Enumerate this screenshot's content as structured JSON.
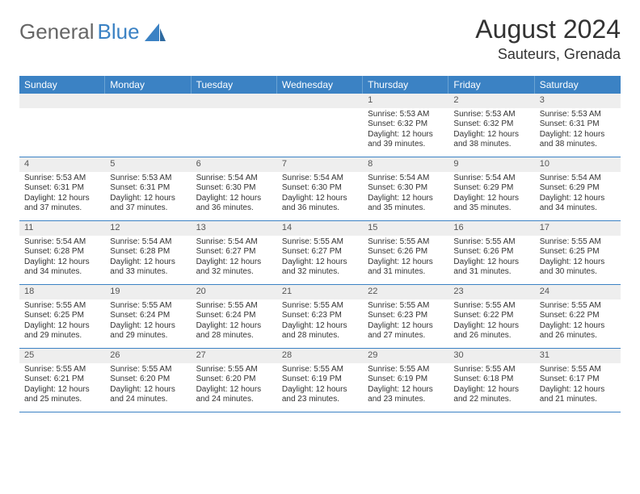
{
  "logo": {
    "text1": "General",
    "text2": "Blue"
  },
  "title": "August 2024",
  "location": "Sauteurs, Grenada",
  "colors": {
    "header_bg": "#3b82c4",
    "header_text": "#ffffff",
    "daynum_bg": "#eeeeee",
    "border": "#3b82c4",
    "logo_gray": "#666666",
    "logo_blue": "#3b82c4"
  },
  "weekdays": [
    "Sunday",
    "Monday",
    "Tuesday",
    "Wednesday",
    "Thursday",
    "Friday",
    "Saturday"
  ],
  "weeks": [
    [
      null,
      null,
      null,
      null,
      {
        "n": "1",
        "sr": "5:53 AM",
        "ss": "6:32 PM",
        "dl": "12 hours and 39 minutes."
      },
      {
        "n": "2",
        "sr": "5:53 AM",
        "ss": "6:32 PM",
        "dl": "12 hours and 38 minutes."
      },
      {
        "n": "3",
        "sr": "5:53 AM",
        "ss": "6:31 PM",
        "dl": "12 hours and 38 minutes."
      }
    ],
    [
      {
        "n": "4",
        "sr": "5:53 AM",
        "ss": "6:31 PM",
        "dl": "12 hours and 37 minutes."
      },
      {
        "n": "5",
        "sr": "5:53 AM",
        "ss": "6:31 PM",
        "dl": "12 hours and 37 minutes."
      },
      {
        "n": "6",
        "sr": "5:54 AM",
        "ss": "6:30 PM",
        "dl": "12 hours and 36 minutes."
      },
      {
        "n": "7",
        "sr": "5:54 AM",
        "ss": "6:30 PM",
        "dl": "12 hours and 36 minutes."
      },
      {
        "n": "8",
        "sr": "5:54 AM",
        "ss": "6:30 PM",
        "dl": "12 hours and 35 minutes."
      },
      {
        "n": "9",
        "sr": "5:54 AM",
        "ss": "6:29 PM",
        "dl": "12 hours and 35 minutes."
      },
      {
        "n": "10",
        "sr": "5:54 AM",
        "ss": "6:29 PM",
        "dl": "12 hours and 34 minutes."
      }
    ],
    [
      {
        "n": "11",
        "sr": "5:54 AM",
        "ss": "6:28 PM",
        "dl": "12 hours and 34 minutes."
      },
      {
        "n": "12",
        "sr": "5:54 AM",
        "ss": "6:28 PM",
        "dl": "12 hours and 33 minutes."
      },
      {
        "n": "13",
        "sr": "5:54 AM",
        "ss": "6:27 PM",
        "dl": "12 hours and 32 minutes."
      },
      {
        "n": "14",
        "sr": "5:55 AM",
        "ss": "6:27 PM",
        "dl": "12 hours and 32 minutes."
      },
      {
        "n": "15",
        "sr": "5:55 AM",
        "ss": "6:26 PM",
        "dl": "12 hours and 31 minutes."
      },
      {
        "n": "16",
        "sr": "5:55 AM",
        "ss": "6:26 PM",
        "dl": "12 hours and 31 minutes."
      },
      {
        "n": "17",
        "sr": "5:55 AM",
        "ss": "6:25 PM",
        "dl": "12 hours and 30 minutes."
      }
    ],
    [
      {
        "n": "18",
        "sr": "5:55 AM",
        "ss": "6:25 PM",
        "dl": "12 hours and 29 minutes."
      },
      {
        "n": "19",
        "sr": "5:55 AM",
        "ss": "6:24 PM",
        "dl": "12 hours and 29 minutes."
      },
      {
        "n": "20",
        "sr": "5:55 AM",
        "ss": "6:24 PM",
        "dl": "12 hours and 28 minutes."
      },
      {
        "n": "21",
        "sr": "5:55 AM",
        "ss": "6:23 PM",
        "dl": "12 hours and 28 minutes."
      },
      {
        "n": "22",
        "sr": "5:55 AM",
        "ss": "6:23 PM",
        "dl": "12 hours and 27 minutes."
      },
      {
        "n": "23",
        "sr": "5:55 AM",
        "ss": "6:22 PM",
        "dl": "12 hours and 26 minutes."
      },
      {
        "n": "24",
        "sr": "5:55 AM",
        "ss": "6:22 PM",
        "dl": "12 hours and 26 minutes."
      }
    ],
    [
      {
        "n": "25",
        "sr": "5:55 AM",
        "ss": "6:21 PM",
        "dl": "12 hours and 25 minutes."
      },
      {
        "n": "26",
        "sr": "5:55 AM",
        "ss": "6:20 PM",
        "dl": "12 hours and 24 minutes."
      },
      {
        "n": "27",
        "sr": "5:55 AM",
        "ss": "6:20 PM",
        "dl": "12 hours and 24 minutes."
      },
      {
        "n": "28",
        "sr": "5:55 AM",
        "ss": "6:19 PM",
        "dl": "12 hours and 23 minutes."
      },
      {
        "n": "29",
        "sr": "5:55 AM",
        "ss": "6:19 PM",
        "dl": "12 hours and 23 minutes."
      },
      {
        "n": "30",
        "sr": "5:55 AM",
        "ss": "6:18 PM",
        "dl": "12 hours and 22 minutes."
      },
      {
        "n": "31",
        "sr": "5:55 AM",
        "ss": "6:17 PM",
        "dl": "12 hours and 21 minutes."
      }
    ]
  ],
  "labels": {
    "sunrise": "Sunrise:",
    "sunset": "Sunset:",
    "daylight": "Daylight:"
  }
}
